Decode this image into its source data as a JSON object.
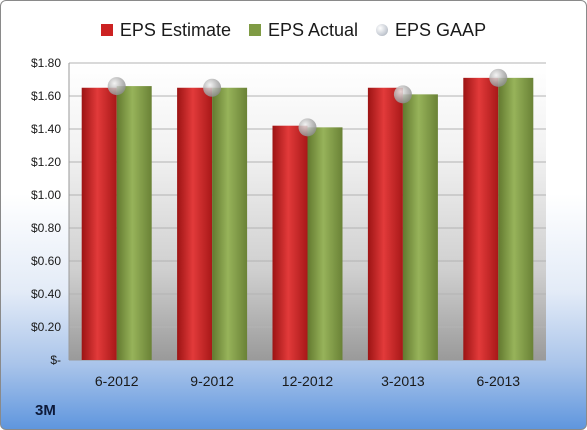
{
  "company": "3M",
  "legend": {
    "estimate": "EPS Estimate",
    "actual": "EPS Actual",
    "gaap": "EPS GAAP"
  },
  "colors": {
    "estimate": "#cc2222",
    "actual": "#7f9b44",
    "gaap": "#b9bec6"
  },
  "chart_data": {
    "type": "bar",
    "categories": [
      "6-2012",
      "9-2012",
      "12-2012",
      "3-2013",
      "6-2013"
    ],
    "series": [
      {
        "name": "EPS Estimate",
        "values": [
          1.65,
          1.65,
          1.42,
          1.65,
          1.71
        ]
      },
      {
        "name": "EPS Actual",
        "values": [
          1.66,
          1.65,
          1.41,
          1.61,
          1.71
        ]
      },
      {
        "name": "EPS GAAP",
        "marker": "dot",
        "values": [
          1.66,
          1.65,
          1.41,
          1.61,
          1.71
        ]
      }
    ],
    "yticks": [
      0,
      0.2,
      0.4,
      0.6,
      0.8,
      1.0,
      1.2,
      1.4,
      1.6,
      1.8
    ],
    "ytick_labels": [
      "$-",
      "$0.20",
      "$0.40",
      "$0.60",
      "$0.80",
      "$1.00",
      "$1.20",
      "$1.40",
      "$1.60",
      "$1.80"
    ],
    "ylim": [
      0,
      1.8
    ],
    "grid": true,
    "legend_position": "top"
  }
}
